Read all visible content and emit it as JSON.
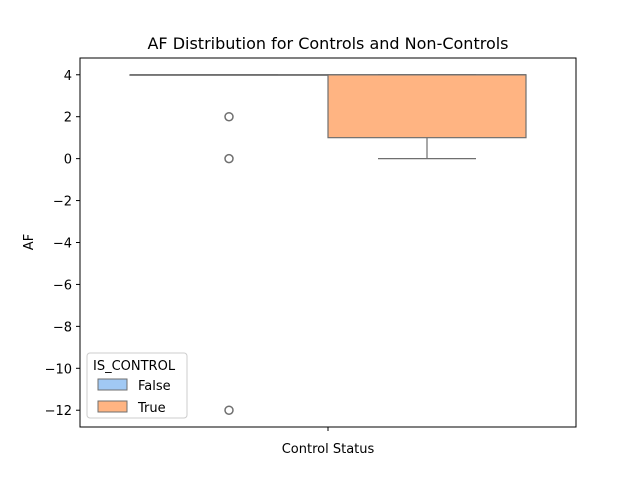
{
  "chart_data": {
    "type": "boxplot",
    "title": "AF Distribution for Controls and Non-Controls",
    "xlabel": "Control Status",
    "ylabel": "AF",
    "ylim": [
      -12.8,
      4.8
    ],
    "yticks": [
      4,
      2,
      0,
      -2,
      -4,
      -6,
      -8,
      -10,
      -12
    ],
    "ytick_labels": [
      "4",
      "2",
      "0",
      "−2",
      "−4",
      "−6",
      "−8",
      "−10",
      "−12"
    ],
    "grid": false,
    "legend": {
      "title": "IS_CONTROL",
      "placement": "lower-left",
      "entries": [
        "False",
        "True"
      ]
    },
    "series": [
      {
        "name": "False",
        "color": "#a1c9f4",
        "whisker_low": 4,
        "q1": 4,
        "median": 4,
        "q3": 4,
        "whisker_high": 4,
        "outliers": [
          2,
          0,
          -12
        ]
      },
      {
        "name": "True",
        "color": "#ffb482",
        "whisker_low": 0,
        "q1": 1,
        "median": 4,
        "q3": 4,
        "whisker_high": 4,
        "outliers": []
      }
    ]
  }
}
